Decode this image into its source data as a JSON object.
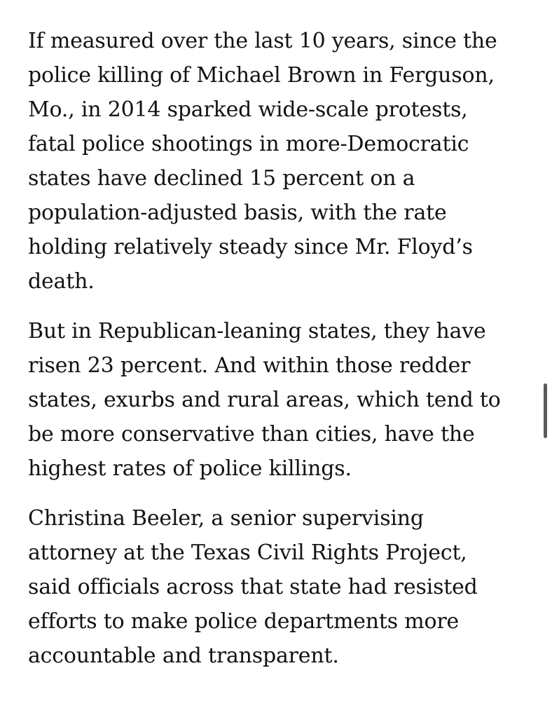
{
  "article": {
    "paragraphs": [
      {
        "lines": [
          "If measured over the last 10 years, since the",
          "police killing of Michael Brown in Ferguson,",
          "Mo., in 2014 sparked wide-scale protests,",
          "fatal police shootings in more-Democratic",
          "states have declined 15 percent on a",
          "population-adjusted basis, with the rate",
          "holding relatively steady since Mr. Floyd’s",
          "death."
        ]
      },
      {
        "lines": [
          "But in Republican-leaning states, they have",
          "risen 23 percent. And within those redder",
          "states, exurbs and rural areas, which tend to",
          "be more conservative than cities, have the",
          "highest rates of police killings."
        ]
      },
      {
        "lines": [
          "Christina Beeler, a senior supervising",
          "attorney at the Texas Civil Rights Project,",
          "said officials across that state had resisted",
          "efforts to make police departments more",
          "accountable and transparent."
        ]
      }
    ]
  },
  "colors": {
    "text": "#121212",
    "background": "#ffffff",
    "scrollbar": "#5a5a5a"
  }
}
